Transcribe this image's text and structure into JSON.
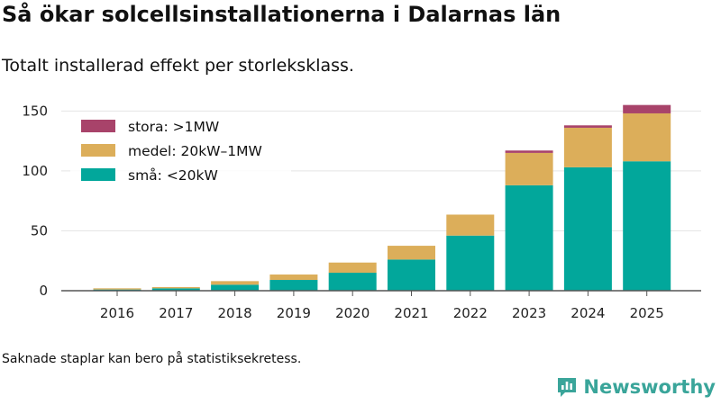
{
  "title": "Så ökar solcellsinstallationerna i Dalarnas län",
  "subtitle": "Totalt installerad effekt per storleksklass.",
  "note": "Saknade staplar kan bero på statistiksekretess.",
  "brand": {
    "name": "Newsworthy",
    "icon": "newsworthy-logo-icon"
  },
  "colors": {
    "stora": "#a8436a",
    "medel": "#dcae5a",
    "sma": "#02a79b",
    "axis": "#555555",
    "grid": "#e5e5e5"
  },
  "chart_data": {
    "type": "bar",
    "stacked": true,
    "categories": [
      "2016",
      "2017",
      "2018",
      "2019",
      "2020",
      "2021",
      "2022",
      "2023",
      "2024",
      "2025"
    ],
    "series": [
      {
        "key": "sma",
        "name": "små: <20kW",
        "values": [
          1,
          2,
          5,
          9,
          15,
          26,
          46,
          88,
          103,
          108
        ]
      },
      {
        "key": "medel",
        "name": "medel: 20kW–1MW",
        "values": [
          1,
          1,
          3,
          4.5,
          8.5,
          11.5,
          17.5,
          27,
          33,
          40
        ]
      },
      {
        "key": "stora",
        "name": "stora: >1MW",
        "values": [
          0,
          0,
          0,
          0,
          0,
          0,
          0,
          2,
          2,
          7
        ]
      }
    ],
    "yticks": [
      0,
      50,
      100,
      150
    ],
    "ylim": [
      0,
      160
    ],
    "xlabel": "",
    "ylabel": "",
    "legend_position": "top-left",
    "grid": true
  }
}
